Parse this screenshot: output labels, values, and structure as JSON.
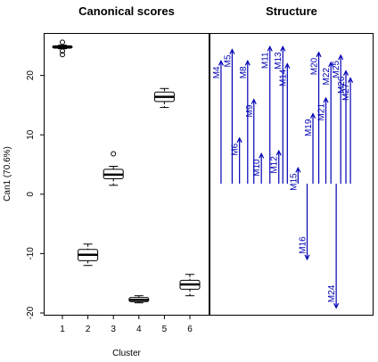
{
  "colors": {
    "arrow": "#0000b4",
    "box": "#000000",
    "background": "#ffffff"
  },
  "chart_data": [
    {
      "type": "box",
      "title": "Canonical scores",
      "xlabel": "Cluster",
      "ylabel": "Can1 (70.6%)",
      "categories": [
        "1",
        "2",
        "3",
        "4",
        "5",
        "6"
      ],
      "ylim": [
        -20.3,
        27
      ],
      "yticks": [
        -20,
        -10,
        0,
        10,
        20
      ],
      "yticklabels": [
        "-20",
        "-10",
        "0",
        "10",
        "20"
      ],
      "boxes": [
        {
          "category": "1",
          "whisker_low": 24.5,
          "q1": 24.6,
          "median": 24.8,
          "q3": 25.0,
          "whisker_high": 25.1,
          "outliers": [
            23.5,
            24.1,
            25.6
          ]
        },
        {
          "category": "2",
          "whisker_low": -12.0,
          "q1": -11.2,
          "median": -10.2,
          "q3": -9.3,
          "whisker_high": -8.4,
          "outliers": []
        },
        {
          "category": "3",
          "whisker_low": 1.5,
          "q1": 2.6,
          "median": 3.3,
          "q3": 4.2,
          "whisker_high": 4.7,
          "outliers": [
            6.8
          ]
        },
        {
          "category": "4",
          "whisker_low": -18.3,
          "q1": -18.1,
          "median": -17.8,
          "q3": -17.4,
          "whisker_high": -17.1,
          "outliers": []
        },
        {
          "category": "5",
          "whisker_low": 14.6,
          "q1": 15.6,
          "median": 16.4,
          "q3": 17.2,
          "whisker_high": 17.8,
          "outliers": []
        },
        {
          "category": "6",
          "whisker_low": -17.1,
          "q1": -16.0,
          "median": -15.2,
          "q3": -14.5,
          "whisker_high": -13.5,
          "outliers": []
        }
      ]
    },
    {
      "type": "arrows",
      "title": "Structure",
      "ylim": [
        -1,
        1
      ],
      "xlim": [
        0,
        1
      ],
      "arrows": [
        {
          "label": "M4",
          "x": 0.034,
          "value": 0.86
        },
        {
          "label": "M5",
          "x": 0.12,
          "value": 0.94
        },
        {
          "label": "M6",
          "x": 0.177,
          "value": 0.32
        },
        {
          "label": "M8",
          "x": 0.24,
          "value": 0.86
        },
        {
          "label": "M9",
          "x": 0.288,
          "value": 0.59
        },
        {
          "label": "M10",
          "x": 0.346,
          "value": 0.21
        },
        {
          "label": "M11",
          "x": 0.412,
          "value": 0.96
        },
        {
          "label": "M12",
          "x": 0.481,
          "value": 0.23
        },
        {
          "label": "M13",
          "x": 0.512,
          "value": 0.96
        },
        {
          "label": "M14",
          "x": 0.547,
          "value": 0.84
        },
        {
          "label": "M15",
          "x": 0.63,
          "value": 0.11
        },
        {
          "label": "M16",
          "x": 0.7,
          "value": -0.53
        },
        {
          "label": "M19",
          "x": 0.745,
          "value": 0.49
        },
        {
          "label": "M20",
          "x": 0.79,
          "value": 0.92
        },
        {
          "label": "M21",
          "x": 0.845,
          "value": 0.6
        },
        {
          "label": "M22",
          "x": 0.884,
          "value": 0.85
        },
        {
          "label": "M24",
          "x": 0.925,
          "value": -0.87
        },
        {
          "label": "M25",
          "x": 0.96,
          "value": 0.9
        },
        {
          "label": "M26",
          "x": 1.0,
          "value": 0.79
        },
        {
          "label": "M27",
          "x": 1.035,
          "value": 0.74
        }
      ]
    }
  ]
}
